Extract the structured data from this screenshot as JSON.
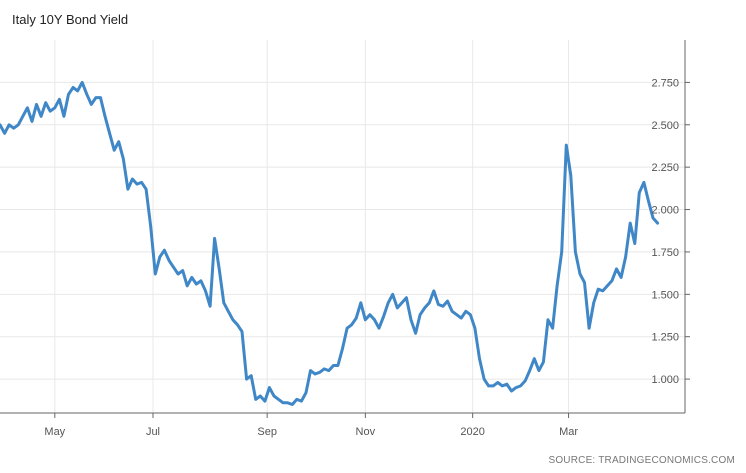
{
  "chart_data": {
    "type": "line",
    "title": "Italy 10Y Bond Yield",
    "source": "SOURCE: TRADINGECONOMICS.COM",
    "ylim": [
      0.8,
      3.0
    ],
    "y_ticks": [
      "1.000",
      "1.250",
      "1.500",
      "1.750",
      "2.000",
      "2.250",
      "2.500",
      "2.750"
    ],
    "y_tick_values": [
      1.0,
      1.25,
      1.5,
      1.75,
      2.0,
      2.25,
      2.5,
      2.75
    ],
    "x_ticks": [
      {
        "label": "May",
        "value": 12.0
      },
      {
        "label": "Jul",
        "value": 33.5
      },
      {
        "label": "Sep",
        "value": 58.5
      },
      {
        "label": "Nov",
        "value": 80.0
      },
      {
        "label": "2020",
        "value": 103.5
      },
      {
        "label": "Mar",
        "value": 124.5
      }
    ],
    "xlim": [
      0,
      150
    ],
    "grid": true,
    "legend": "none",
    "line_color": "#3f87c7",
    "series": [
      {
        "x": [
          0,
          1,
          2,
          3,
          4,
          5,
          6,
          7,
          8,
          9,
          10,
          11,
          12,
          13,
          14,
          15,
          16,
          17,
          18,
          19,
          20,
          21,
          22,
          23,
          24,
          25,
          26,
          27,
          28,
          29,
          30,
          31,
          32,
          33,
          34,
          35,
          36,
          37,
          38,
          39,
          40,
          41,
          42,
          43,
          44,
          45,
          46,
          47,
          48,
          49,
          50,
          51,
          52,
          53,
          54,
          55,
          56,
          57,
          58,
          59,
          60,
          61,
          62,
          63,
          64,
          65,
          66,
          67,
          68,
          69,
          70,
          71,
          72,
          73,
          74,
          75,
          76,
          77,
          78,
          79,
          80,
          81,
          82,
          83,
          84,
          85,
          86,
          87,
          88,
          89,
          90,
          91,
          92,
          93,
          94,
          95,
          96,
          97,
          98,
          99,
          100,
          101,
          102,
          103,
          104,
          105,
          106,
          107,
          108,
          109,
          110,
          111,
          112,
          113,
          114,
          115,
          116,
          117,
          118,
          119,
          120,
          121,
          122,
          123,
          124,
          125,
          126,
          127,
          128,
          129,
          130,
          131,
          132,
          133,
          134,
          135,
          136,
          137,
          138,
          139,
          140,
          141,
          142,
          143,
          144
        ],
        "y": [
          2.5,
          2.45,
          2.5,
          2.48,
          2.5,
          2.55,
          2.6,
          2.52,
          2.62,
          2.55,
          2.63,
          2.58,
          2.6,
          2.65,
          2.55,
          2.68,
          2.72,
          2.7,
          2.75,
          2.68,
          2.62,
          2.66,
          2.66,
          2.55,
          2.45,
          2.35,
          2.4,
          2.3,
          2.12,
          2.18,
          2.15,
          2.16,
          2.12,
          1.9,
          1.62,
          1.72,
          1.76,
          1.7,
          1.66,
          1.62,
          1.64,
          1.55,
          1.6,
          1.56,
          1.58,
          1.52,
          1.43,
          1.83,
          1.65,
          1.45,
          1.4,
          1.35,
          1.32,
          1.28,
          1.0,
          1.02,
          0.88,
          0.9,
          0.87,
          0.95,
          0.9,
          0.88,
          0.86,
          0.86,
          0.85,
          0.88,
          0.87,
          0.92,
          1.05,
          1.03,
          1.04,
          1.06,
          1.05,
          1.08,
          1.08,
          1.18,
          1.3,
          1.32,
          1.36,
          1.45,
          1.35,
          1.38,
          1.35,
          1.3,
          1.37,
          1.45,
          1.5,
          1.42,
          1.45,
          1.48,
          1.35,
          1.27,
          1.38,
          1.42,
          1.45,
          1.52,
          1.44,
          1.43,
          1.46,
          1.4,
          1.38,
          1.36,
          1.4,
          1.38,
          1.3,
          1.12,
          1.0,
          0.96,
          0.96,
          0.98,
          0.96,
          0.97,
          0.93,
          0.95,
          0.96,
          0.99,
          1.05,
          1.12,
          1.05,
          1.1,
          1.35,
          1.3,
          1.55,
          1.75,
          2.38,
          2.2,
          1.75,
          1.62,
          1.57,
          1.3,
          1.45,
          1.53,
          1.52,
          1.55,
          1.58,
          1.65,
          1.6,
          1.72,
          1.92,
          1.8,
          2.1,
          2.16,
          2.05,
          1.95,
          1.92
        ]
      }
    ]
  }
}
